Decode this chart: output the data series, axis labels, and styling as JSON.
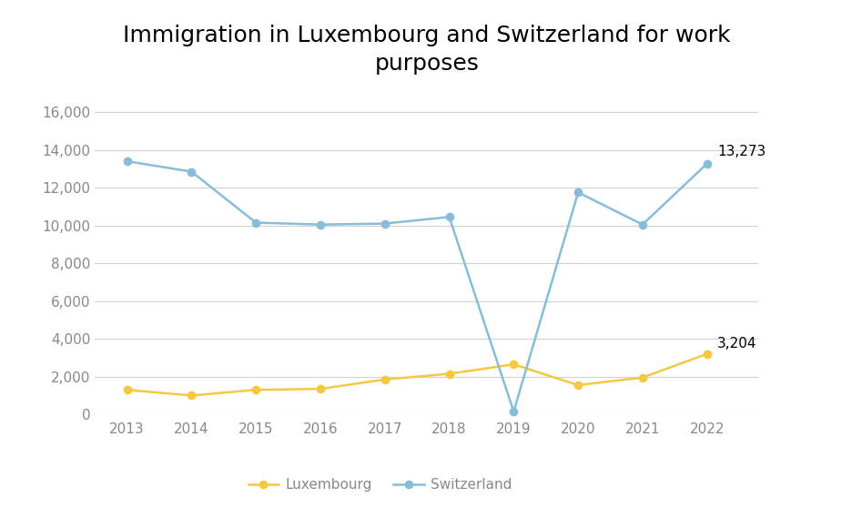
{
  "title": "Immigration in Luxembourg and Switzerland for work\npurposes",
  "years": [
    2013,
    2014,
    2015,
    2016,
    2017,
    2018,
    2019,
    2020,
    2021,
    2022
  ],
  "luxembourg": [
    1300,
    1000,
    1300,
    1350,
    1850,
    2150,
    2650,
    1550,
    1950,
    3204
  ],
  "switzerland": [
    13400,
    12850,
    10150,
    10050,
    10100,
    10450,
    150,
    11750,
    10050,
    13273
  ],
  "luxembourg_color": "#f5c842",
  "switzerland_color": "#88bdd8",
  "luxembourg_label": "Luxembourg",
  "switzerland_label": "Switzerland",
  "last_label_luxembourg": "3,204",
  "last_label_switzerland": "13,273",
  "ylim": [
    0,
    17000
  ],
  "yticks": [
    0,
    2000,
    4000,
    6000,
    8000,
    10000,
    12000,
    14000,
    16000
  ],
  "background_color": "#ffffff",
  "grid_color": "#d0d0d0",
  "title_fontsize": 18,
  "tick_fontsize": 11,
  "legend_fontsize": 11,
  "annotation_fontsize": 11,
  "marker": "o",
  "linewidth": 1.8,
  "markersize": 6
}
